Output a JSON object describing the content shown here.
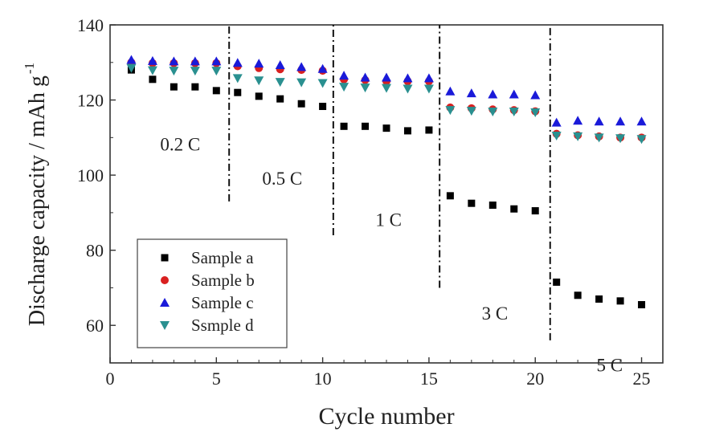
{
  "chart_data": {
    "type": "scatter",
    "xlabel": "Cycle number",
    "ylabel": "Discharge capacity / mAh g",
    "ylabel_superscript": "-1",
    "xlim": [
      0,
      26
    ],
    "ylim": [
      50,
      140
    ],
    "xticks": [
      0,
      5,
      10,
      15,
      20,
      25
    ],
    "yticks": [
      60,
      80,
      100,
      120,
      140
    ],
    "x": [
      1,
      2,
      3,
      4,
      5,
      6,
      7,
      8,
      9,
      10,
      11,
      12,
      13,
      14,
      15,
      16,
      17,
      18,
      19,
      20,
      21,
      22,
      23,
      24,
      25
    ],
    "series": [
      {
        "name": "Sample a",
        "marker": "square",
        "color": "#000000",
        "values": [
          128.0,
          125.5,
          123.5,
          123.5,
          122.5,
          122.0,
          121.0,
          120.3,
          119.0,
          118.3,
          113.0,
          113.0,
          112.5,
          111.8,
          112.0,
          94.5,
          92.5,
          92.0,
          91.0,
          90.5,
          71.5,
          68.0,
          67.0,
          66.5,
          65.5
        ]
      },
      {
        "name": "Sample b",
        "marker": "circle",
        "color": "#d92020",
        "values": [
          130.0,
          129.8,
          129.8,
          129.8,
          129.8,
          129.0,
          128.5,
          128.2,
          128.0,
          127.8,
          125.5,
          125.3,
          125.0,
          125.0,
          125.0,
          118.0,
          117.8,
          117.5,
          117.3,
          117.0,
          111.0,
          110.6,
          110.3,
          110.0,
          110.0
        ]
      },
      {
        "name": "Sample c",
        "marker": "triangle-up",
        "color": "#1a1ad9",
        "values": [
          130.7,
          130.4,
          130.3,
          130.3,
          130.3,
          129.9,
          129.7,
          129.3,
          128.8,
          128.3,
          126.5,
          126.0,
          126.0,
          125.8,
          125.8,
          122.3,
          121.8,
          121.5,
          121.5,
          121.3,
          114.0,
          114.5,
          114.3,
          114.3,
          114.3
        ]
      },
      {
        "name": "Ssmple d",
        "marker": "triangle-down",
        "color": "#2a9090",
        "values": [
          128.5,
          127.9,
          127.8,
          127.8,
          127.8,
          125.8,
          125.2,
          124.8,
          124.7,
          124.5,
          123.5,
          123.3,
          123.2,
          123.0,
          123.0,
          117.3,
          117.1,
          116.9,
          116.9,
          116.7,
          110.5,
          110.3,
          110.0,
          109.8,
          109.6
        ]
      }
    ],
    "rate_dividers": [
      {
        "x": 5.6,
        "y_from": 93,
        "y_to": 140
      },
      {
        "x": 10.5,
        "y_from": 84,
        "y_to": 140
      },
      {
        "x": 15.5,
        "y_from": 70,
        "y_to": 140
      },
      {
        "x": 20.7,
        "y_from": 56,
        "y_to": 140
      }
    ],
    "rate_labels": [
      {
        "text": "0.2 C",
        "x": 3.3,
        "y": 106.5
      },
      {
        "text": "0.5 C",
        "x": 8.1,
        "y": 97.5
      },
      {
        "text": "1 C",
        "x": 13.1,
        "y": 86.5
      },
      {
        "text": "3 C",
        "x": 18.1,
        "y": 61.5
      },
      {
        "text": "5 C",
        "x": 23.5,
        "y": 47.8
      }
    ],
    "legend_position": "lower-left"
  }
}
